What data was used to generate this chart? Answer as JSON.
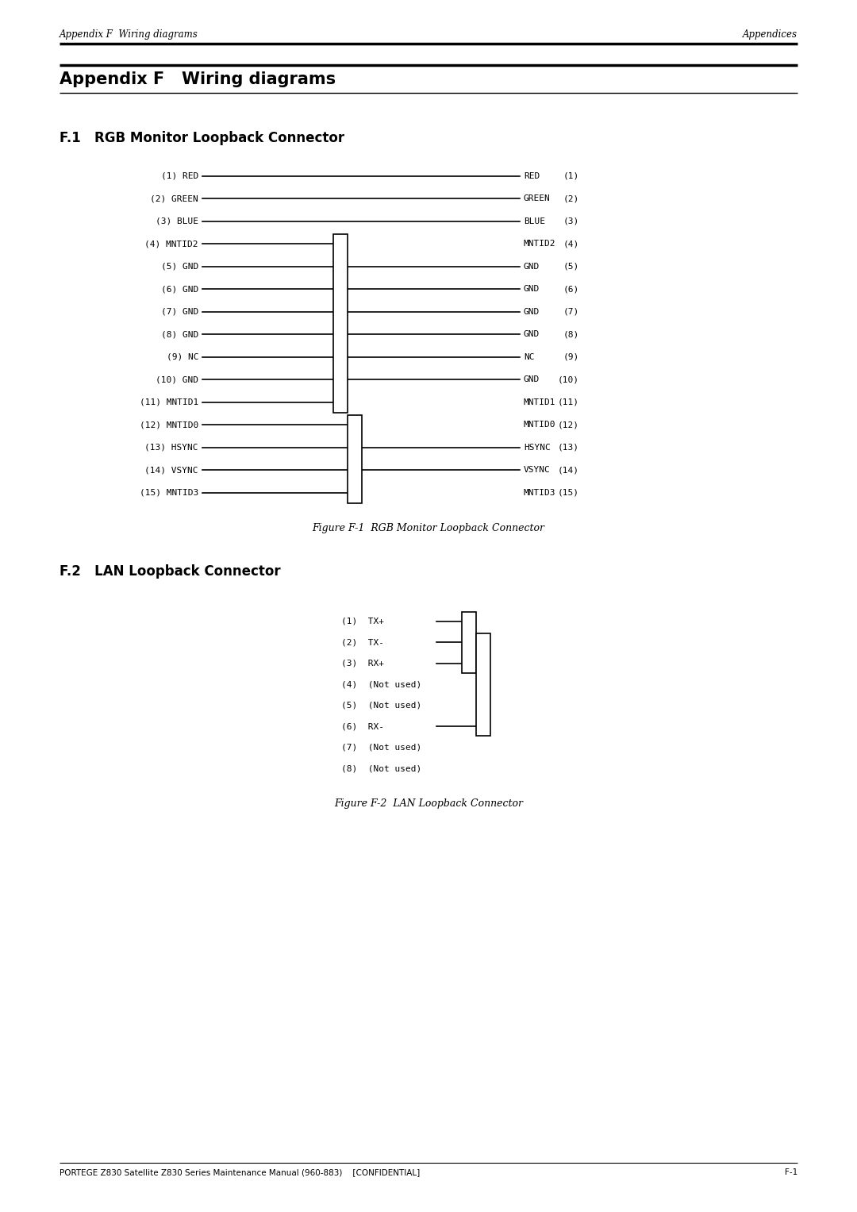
{
  "page_title_left": "Appendix F  Wiring diagrams",
  "page_title_right": "Appendices",
  "appendix_title": "Appendix F   Wiring diagrams",
  "section1_title": "F.1   RGB Monitor Loopback Connector",
  "section2_title": "F.2   LAN Loopback Connector",
  "fig1_caption": "Figure F-1  RGB Monitor Loopback Connector",
  "fig2_caption": "Figure F-2  LAN Loopback Connector",
  "footer_left": "PORTEGE Z830 Satellite Z830 Series Maintenance Manual (960-883)    [CONFIDENTIAL]",
  "footer_right": "F-1",
  "rgb_left_labels": [
    "(1) RED",
    "(2) GREEN",
    "(3) BLUE",
    "(4) MNTID2",
    "(5) GND",
    "(6) GND",
    "(7) GND",
    "(8) GND",
    "(9) NC",
    "(10) GND",
    "(11) MNTID1",
    "(12) MNTID0",
    "(13) HSYNC",
    "(14) VSYNC",
    "(15) MNTID3"
  ],
  "rgb_right_name": [
    "RED",
    "GREEN",
    "BLUE",
    "MNTID2",
    "GND",
    "GND",
    "GND",
    "GND",
    "NC",
    "GND",
    "MNTID1",
    "MNTID0",
    "HSYNC",
    "VSYNC",
    "MNTID3"
  ],
  "rgb_right_num": [
    "(1)",
    "(2)",
    "(3)",
    "(4)",
    "(5)",
    "(6)",
    "(7)",
    "(8)",
    "(9)",
    "(10)",
    "(11)",
    "(12)",
    "(13)",
    "(14)",
    "(15)"
  ],
  "lan_labels": [
    "(1)  TX+",
    "(2)  TX-",
    "(3)  RX+",
    "(4)  (Not used)",
    "(5)  (Not used)",
    "(6)  RX-",
    "(7)  (Not used)",
    "(8)  (Not used)"
  ]
}
